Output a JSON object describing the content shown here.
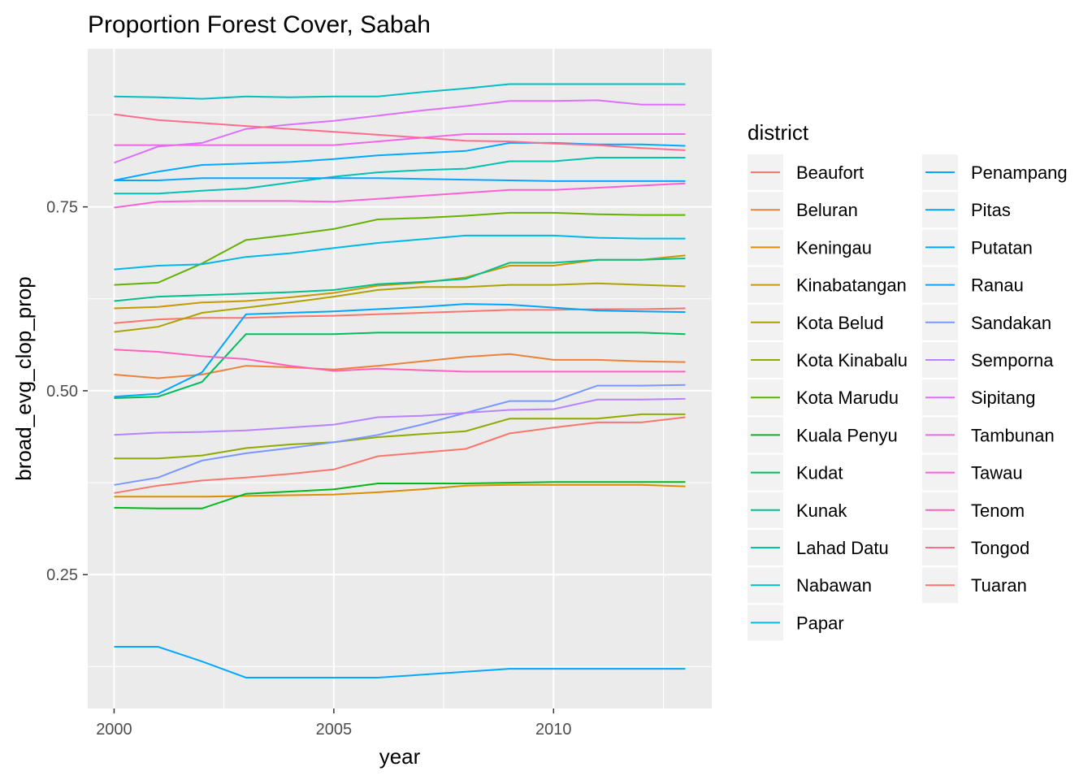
{
  "chart_data": {
    "type": "line",
    "title": "Proportion Forest Cover, Sabah",
    "xlabel": "year",
    "ylabel": "broad_evg_clop_prop",
    "xlim": [
      1999.4,
      2013.6
    ],
    "ylim": [
      0.068,
      0.965
    ],
    "x_ticks": [
      2000,
      2005,
      2010
    ],
    "y_ticks": [
      0.25,
      0.5,
      0.75
    ],
    "grid": true,
    "panel_background": "#ebebeb",
    "legend": {
      "title": "district",
      "placement": "right",
      "columns": 2
    },
    "x": [
      2000,
      2001,
      2002,
      2003,
      2004,
      2005,
      2006,
      2007,
      2008,
      2009,
      2010,
      2011,
      2012,
      2013
    ],
    "series": [
      {
        "name": "Beaufort",
        "color": "#F8766D",
        "values": [
          0.592,
          0.597,
          0.599,
          0.599,
          0.601,
          0.602,
          0.604,
          0.606,
          0.608,
          0.61,
          0.61,
          0.611,
          0.611,
          0.612
        ]
      },
      {
        "name": "Beluran",
        "color": "#EC8239",
        "values": [
          0.522,
          0.517,
          0.522,
          0.534,
          0.532,
          0.529,
          0.534,
          0.54,
          0.546,
          0.55,
          0.542,
          0.542,
          0.54,
          0.539
        ]
      },
      {
        "name": "Keningau",
        "color": "#DB8E00",
        "values": [
          0.356,
          0.356,
          0.356,
          0.357,
          0.358,
          0.359,
          0.362,
          0.366,
          0.371,
          0.372,
          0.372,
          0.372,
          0.372,
          0.37
        ]
      },
      {
        "name": "Kinabatangan",
        "color": "#C79800",
        "values": [
          0.612,
          0.614,
          0.62,
          0.622,
          0.627,
          0.633,
          0.643,
          0.647,
          0.654,
          0.67,
          0.67,
          0.678,
          0.678,
          0.684
        ]
      },
      {
        "name": "Kota Belud",
        "color": "#AEA200",
        "values": [
          0.58,
          0.587,
          0.606,
          0.613,
          0.62,
          0.628,
          0.637,
          0.641,
          0.641,
          0.644,
          0.644,
          0.646,
          0.644,
          0.642
        ]
      },
      {
        "name": "Kota Kinabalu",
        "color": "#8FAA00",
        "values": [
          0.408,
          0.408,
          0.412,
          0.422,
          0.427,
          0.43,
          0.437,
          0.441,
          0.445,
          0.462,
          0.462,
          0.462,
          0.468,
          0.468
        ]
      },
      {
        "name": "Kota Marudu",
        "color": "#64B200",
        "values": [
          0.644,
          0.647,
          0.673,
          0.705,
          0.712,
          0.72,
          0.733,
          0.735,
          0.738,
          0.742,
          0.742,
          0.74,
          0.739,
          0.739
        ]
      },
      {
        "name": "Kuala Penyu",
        "color": "#00B81B",
        "values": [
          0.341,
          0.34,
          0.34,
          0.36,
          0.363,
          0.366,
          0.374,
          0.374,
          0.374,
          0.375,
          0.376,
          0.376,
          0.376,
          0.376
        ]
      },
      {
        "name": "Kudat",
        "color": "#00BD5C",
        "values": [
          0.49,
          0.492,
          0.512,
          0.577,
          0.577,
          0.577,
          0.579,
          0.579,
          0.579,
          0.579,
          0.579,
          0.579,
          0.579,
          0.577
        ]
      },
      {
        "name": "Kunak",
        "color": "#00C08E",
        "values": [
          0.622,
          0.628,
          0.63,
          0.632,
          0.634,
          0.637,
          0.645,
          0.648,
          0.652,
          0.674,
          0.674,
          0.678,
          0.678,
          0.68
        ]
      },
      {
        "name": "Lahad Datu",
        "color": "#00C1B2",
        "values": [
          0.768,
          0.768,
          0.772,
          0.775,
          0.783,
          0.791,
          0.797,
          0.8,
          0.802,
          0.812,
          0.812,
          0.817,
          0.817,
          0.817
        ]
      },
      {
        "name": "Nabawan",
        "color": "#00BFC4",
        "values": [
          0.9,
          0.899,
          0.897,
          0.9,
          0.899,
          0.9,
          0.9,
          0.906,
          0.911,
          0.917,
          0.917,
          0.917,
          0.917,
          0.917
        ]
      },
      {
        "name": "Papar",
        "color": "#00B8E5",
        "values": [
          0.665,
          0.67,
          0.672,
          0.682,
          0.687,
          0.694,
          0.701,
          0.706,
          0.711,
          0.711,
          0.711,
          0.708,
          0.707,
          0.707
        ]
      },
      {
        "name": "Penampang",
        "color": "#00A9FF",
        "values": [
          0.786,
          0.798,
          0.807,
          0.809,
          0.811,
          0.815,
          0.82,
          0.823,
          0.826,
          0.837,
          0.837,
          0.835,
          0.835,
          0.833
        ]
      },
      {
        "name": "Pitas",
        "color": "#00A5FF",
        "values": [
          0.492,
          0.496,
          0.525,
          0.604,
          0.606,
          0.608,
          0.611,
          0.614,
          0.618,
          0.617,
          0.613,
          0.609,
          0.608,
          0.607
        ]
      },
      {
        "name": "Putatan",
        "color": "#00A9FF",
        "values": [
          0.152,
          0.152,
          0.132,
          0.11,
          0.11,
          0.11,
          0.11,
          0.114,
          0.118,
          0.122,
          0.122,
          0.122,
          0.122,
          0.122
        ]
      },
      {
        "name": "Ranau",
        "color": "#0CA3FF",
        "values": [
          0.786,
          0.786,
          0.789,
          0.789,
          0.789,
          0.789,
          0.789,
          0.788,
          0.787,
          0.786,
          0.785,
          0.785,
          0.785,
          0.785
        ]
      },
      {
        "name": "Sandakan",
        "color": "#7997FF",
        "values": [
          0.372,
          0.382,
          0.405,
          0.415,
          0.422,
          0.43,
          0.44,
          0.454,
          0.47,
          0.486,
          0.486,
          0.507,
          0.507,
          0.508
        ]
      },
      {
        "name": "Semporna",
        "color": "#B983FF",
        "values": [
          0.44,
          0.443,
          0.444,
          0.446,
          0.45,
          0.454,
          0.464,
          0.466,
          0.47,
          0.474,
          0.475,
          0.488,
          0.488,
          0.489
        ]
      },
      {
        "name": "Sipitang",
        "color": "#DC71FA",
        "values": [
          0.81,
          0.832,
          0.837,
          0.856,
          0.862,
          0.867,
          0.874,
          0.881,
          0.887,
          0.894,
          0.894,
          0.895,
          0.889,
          0.889
        ]
      },
      {
        "name": "Tambunan",
        "color": "#EF67EB",
        "values": [
          0.834,
          0.834,
          0.834,
          0.834,
          0.834,
          0.834,
          0.839,
          0.844,
          0.849,
          0.849,
          0.849,
          0.849,
          0.849,
          0.849
        ]
      },
      {
        "name": "Tawau",
        "color": "#FB61D7",
        "values": [
          0.749,
          0.757,
          0.758,
          0.758,
          0.758,
          0.757,
          0.761,
          0.765,
          0.769,
          0.773,
          0.773,
          0.776,
          0.779,
          0.782
        ]
      },
      {
        "name": "Tenom",
        "color": "#FF62BC",
        "values": [
          0.556,
          0.553,
          0.547,
          0.543,
          0.534,
          0.527,
          0.53,
          0.528,
          0.526,
          0.526,
          0.526,
          0.526,
          0.526,
          0.526
        ]
      },
      {
        "name": "Tongod",
        "color": "#FF6C90",
        "values": [
          0.876,
          0.868,
          0.864,
          0.86,
          0.856,
          0.852,
          0.848,
          0.844,
          0.84,
          0.839,
          0.836,
          0.834,
          0.83,
          0.827
        ]
      },
      {
        "name": "Tuaran",
        "color": "#F8766D",
        "values": [
          0.361,
          0.371,
          0.378,
          0.382,
          0.387,
          0.393,
          0.411,
          0.416,
          0.421,
          0.442,
          0.45,
          0.457,
          0.457,
          0.464
        ]
      }
    ]
  }
}
